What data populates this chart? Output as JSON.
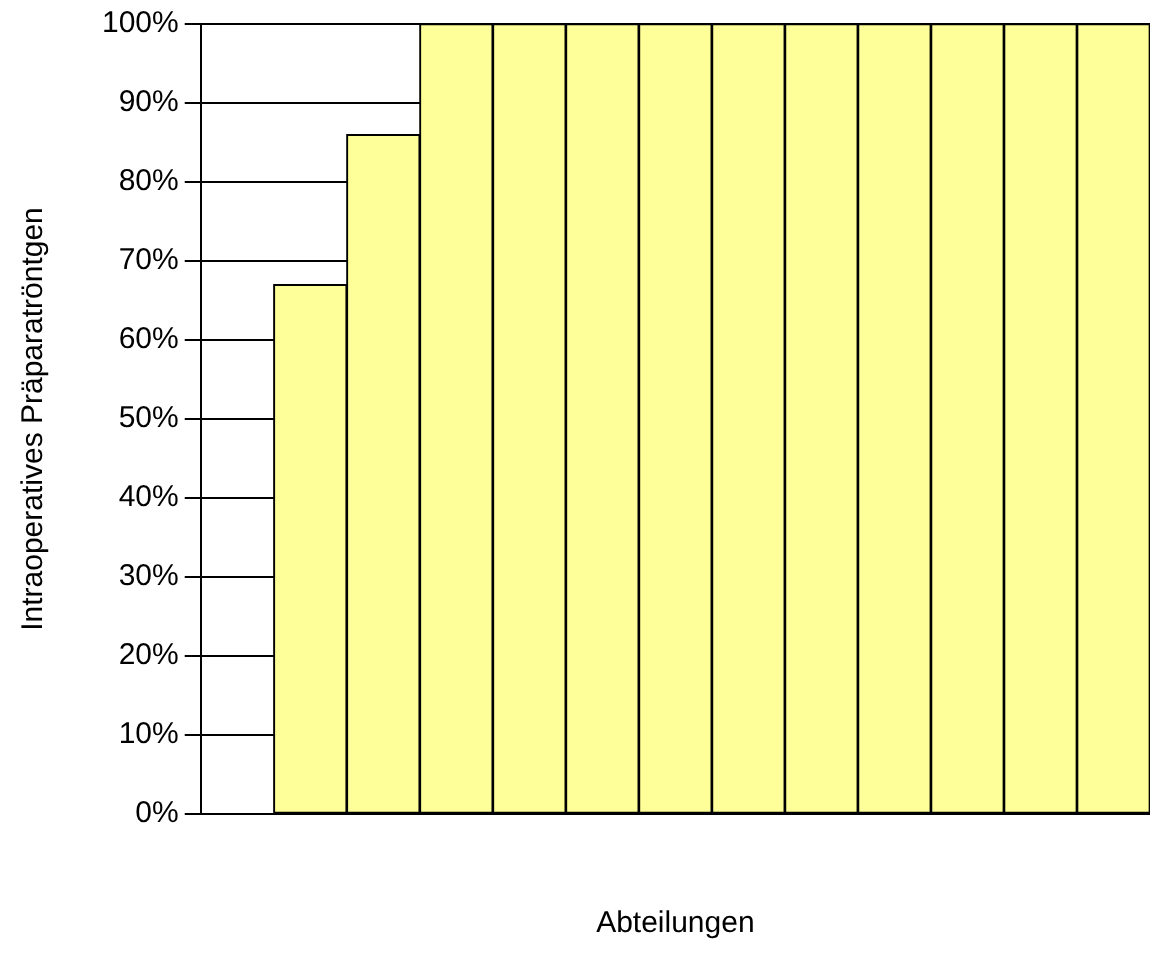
{
  "chart_data": {
    "type": "bar",
    "xlabel": "Abteilungen",
    "ylabel": "Intraoperatives Präparatröntgen",
    "categories": [
      null,
      null,
      null,
      null,
      null,
      null,
      null,
      null,
      null,
      null,
      null,
      null,
      null
    ],
    "values": [
      null,
      67,
      86,
      100,
      100,
      100,
      100,
      100,
      100,
      100,
      100,
      100,
      100
    ],
    "color": "#ffff99",
    "ylim": [
      0,
      100
    ],
    "yticks": [
      {
        "value": 0,
        "label": "0%"
      },
      {
        "value": 10,
        "label": "10%"
      },
      {
        "value": 20,
        "label": "20%"
      },
      {
        "value": 30,
        "label": "30%"
      },
      {
        "value": 40,
        "label": "40%"
      },
      {
        "value": 50,
        "label": "50%"
      },
      {
        "value": 60,
        "label": "60%"
      },
      {
        "value": 70,
        "label": "70%"
      },
      {
        "value": 80,
        "label": "80%"
      },
      {
        "value": 90,
        "label": "90%"
      },
      {
        "value": 100,
        "label": "100%"
      }
    ],
    "grid": "y",
    "legend": false
  }
}
